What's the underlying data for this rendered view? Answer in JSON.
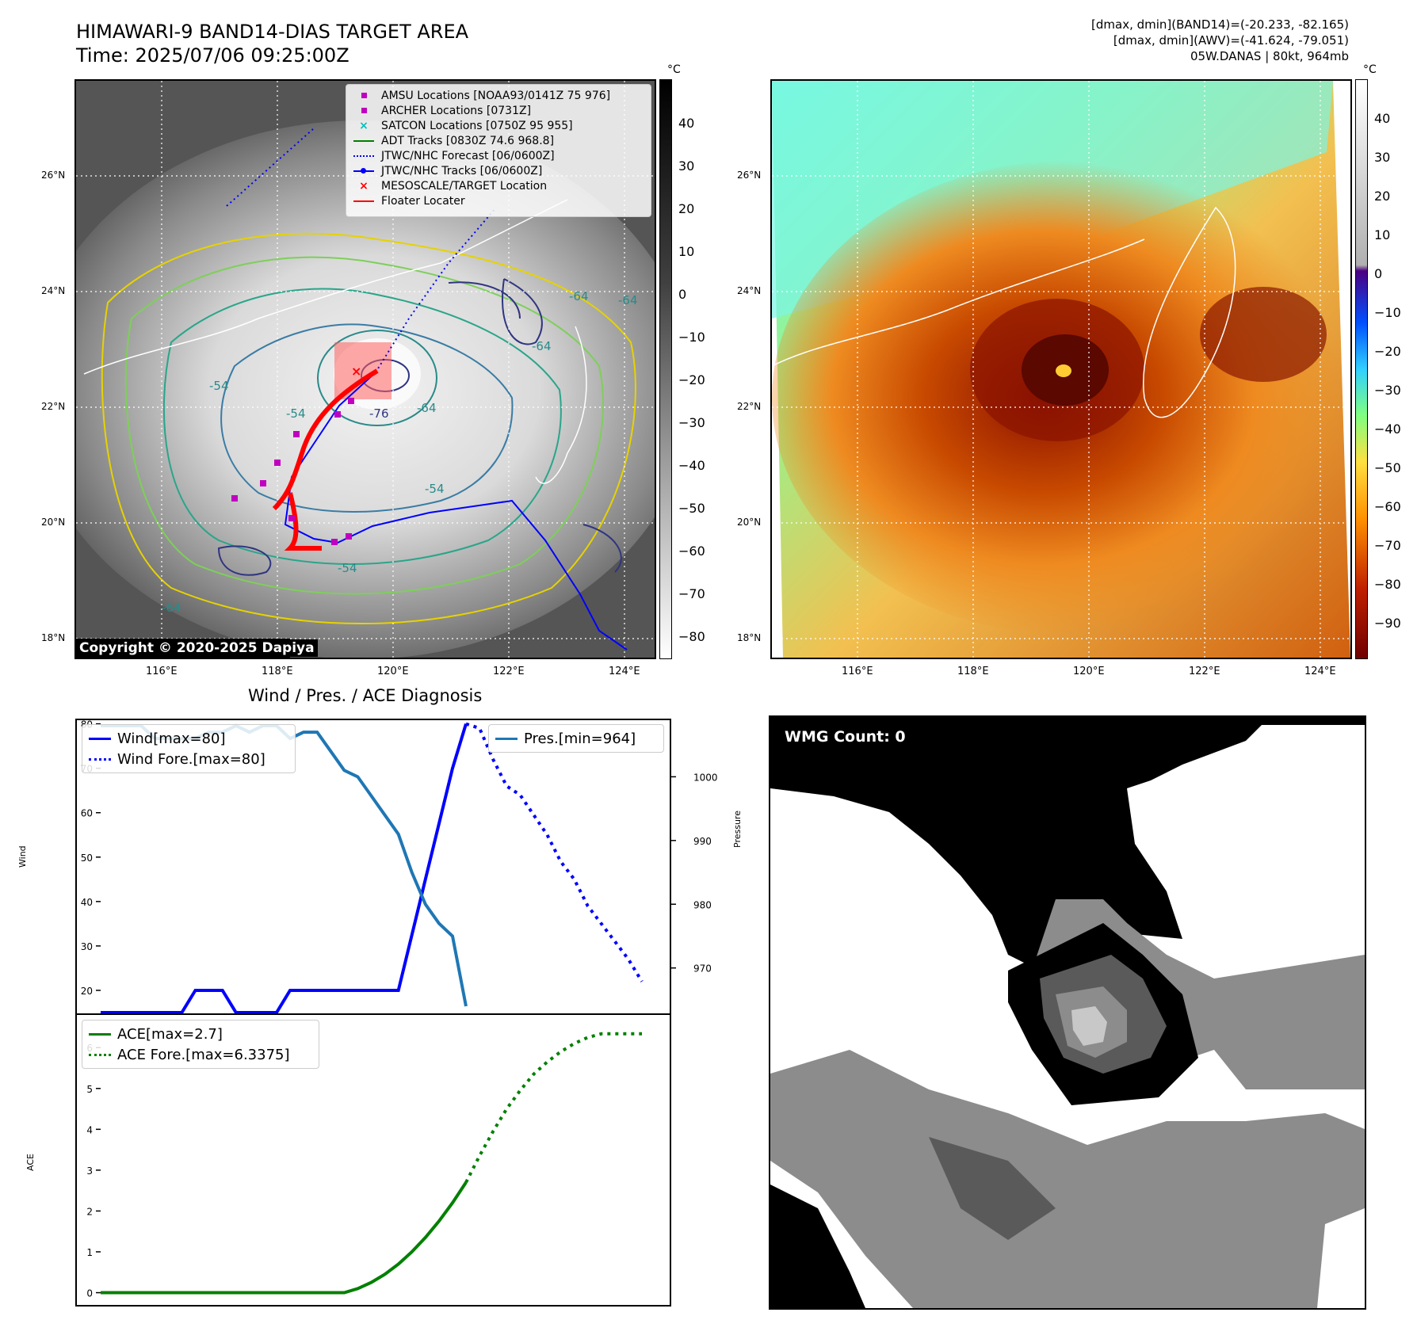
{
  "header": {
    "title": "HIMAWARI-9 BAND14-DIAS TARGET AREA",
    "time": "Time: 2025/07/06 09:25:00Z",
    "dmax_band14": "[dmax, dmin](BAND14)=(-20.233, -82.165)",
    "dmax_awv": "[dmax, dmin](AWV)=(-41.624, -79.051)",
    "storm": "05W.DANAS | 80kt, 964mb"
  },
  "map_axes": {
    "lat_labels": [
      "26°N",
      "24°N",
      "22°N",
      "20°N",
      "18°N"
    ],
    "lon_labels": [
      "116°E",
      "118°E",
      "120°E",
      "122°E",
      "124°E"
    ]
  },
  "left_map": {
    "colorbar_unit": "°C",
    "colorbar_ticks": [
      "40",
      "30",
      "20",
      "10",
      "0",
      "−10",
      "−20",
      "−30",
      "−40",
      "−50",
      "−60",
      "−70",
      "−80"
    ],
    "copyright": "Copyright © 2020-2025 Dapiya",
    "contour_labels": [
      "-54",
      "-54",
      "-64",
      "-76",
      "-64",
      "-64",
      "-64",
      "-54",
      "-54",
      "-64"
    ],
    "legend": [
      {
        "label": "AMSU Locations [NOAA93/0141Z 75 976]",
        "icon": "square-marker",
        "color": "#c000c0"
      },
      {
        "label": "ARCHER Locations [0731Z]",
        "icon": "square-marker",
        "color": "#c000c0"
      },
      {
        "label": "SATCON Locations [0750Z 95 955]",
        "icon": "x-marker",
        "color": "#00bfbf"
      },
      {
        "label": "ADT Tracks [0830Z 74.6 968.8]",
        "icon": "solid-line",
        "color": "#008000"
      },
      {
        "label": "JTWC/NHC Forecast [06/0600Z]",
        "icon": "dotted-line",
        "color": "#0000ff"
      },
      {
        "label": "JTWC/NHC Tracks [06/0600Z]",
        "icon": "line-dot",
        "color": "#0000ff"
      },
      {
        "label": "MESOSCALE/TARGET Location",
        "icon": "x-marker",
        "color": "#ff0000"
      },
      {
        "label": "Floater Locater",
        "icon": "solid-line",
        "color": "#ff0000"
      }
    ]
  },
  "right_map": {
    "colorbar_unit": "°C",
    "colorbar_ticks": [
      "40",
      "30",
      "20",
      "10",
      "0",
      "−10",
      "−20",
      "−30",
      "−40",
      "−50",
      "−60",
      "−70",
      "−80",
      "−90"
    ]
  },
  "wmg": {
    "label": "WMG Count: 0"
  },
  "chart_data": [
    {
      "type": "line",
      "title": "Wind / Pres. / ACE Diagnosis",
      "ylabel": "Wind",
      "ylabel_right": "Pressure",
      "ylim": [
        15,
        81
      ],
      "ylim_right": [
        963,
        1009
      ],
      "yticks": [
        "80",
        "70",
        "60",
        "50",
        "40",
        "30",
        "20"
      ],
      "yticks_right": [
        "1000",
        "990",
        "980",
        "970"
      ],
      "series": [
        {
          "name": "Wind[max=80]",
          "style": "solid",
          "color": "#0000ff",
          "axis": "left",
          "x": [
            0,
            6,
            7,
            9,
            10,
            13,
            14,
            18,
            22,
            24,
            26,
            27
          ],
          "y": [
            15,
            15,
            20,
            20,
            15,
            15,
            20,
            20,
            20,
            45,
            70,
            80
          ]
        },
        {
          "name": "Wind Fore.[max=80]",
          "style": "dotted",
          "color": "#0000ff",
          "axis": "left",
          "x": [
            27,
            28,
            29,
            30,
            31,
            33,
            34,
            35,
            36,
            38,
            39,
            40
          ],
          "y": [
            80,
            79,
            72,
            66,
            64,
            55,
            49,
            45,
            39,
            31,
            27,
            22
          ]
        },
        {
          "name": "Pres.[min=964]",
          "style": "solid",
          "color": "#1f77b4",
          "axis": "right",
          "x": [
            0,
            3,
            4,
            5,
            7,
            8,
            9,
            10,
            11,
            12,
            13,
            14,
            15,
            16,
            17,
            18,
            19,
            20,
            21,
            22,
            23,
            24,
            25,
            26,
            27
          ],
          "y": [
            1008,
            1008,
            1006,
            1006,
            1006,
            1007,
            1007,
            1008,
            1007,
            1008,
            1008,
            1006,
            1007,
            1007,
            1004,
            1001,
            1000,
            997,
            994,
            991,
            985,
            980,
            977,
            975,
            964
          ]
        }
      ]
    },
    {
      "type": "line",
      "ylabel": "ACE",
      "ylim": [
        -0.3,
        6.8
      ],
      "yticks": [
        "6",
        "5",
        "4",
        "3",
        "2",
        "1",
        "0"
      ],
      "series": [
        {
          "name": "ACE[max=2.7]",
          "style": "solid",
          "color": "#008000",
          "x": [
            0,
            12,
            18,
            19,
            20,
            21,
            22,
            23,
            24,
            25,
            26,
            27
          ],
          "y": [
            0,
            0,
            0,
            0.1,
            0.25,
            0.45,
            0.7,
            1.0,
            1.35,
            1.75,
            2.2,
            2.7
          ]
        },
        {
          "name": "ACE Fore.[max=6.3375]",
          "style": "dotted",
          "color": "#008000",
          "x": [
            27,
            28,
            29,
            30,
            31,
            32,
            33,
            34,
            35,
            36,
            37,
            38,
            40
          ],
          "y": [
            2.7,
            3.35,
            3.95,
            4.5,
            4.95,
            5.35,
            5.65,
            5.9,
            6.1,
            6.25,
            6.3375,
            6.3375,
            6.3375
          ]
        }
      ]
    }
  ]
}
